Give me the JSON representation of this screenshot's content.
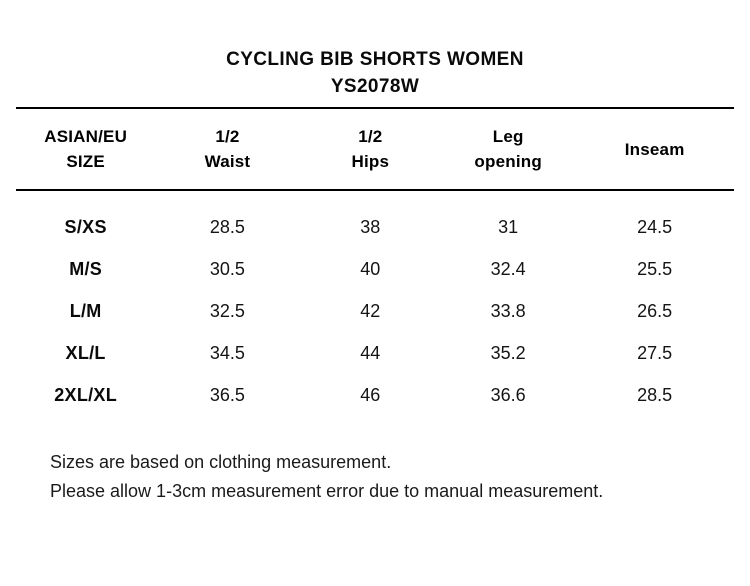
{
  "title": {
    "line1": "CYCLING BIB SHORTS WOMEN",
    "line2": "YS2078W"
  },
  "table": {
    "headers": [
      {
        "line1": "ASIAN/EU",
        "line2": "SIZE"
      },
      {
        "line1": "1/2",
        "line2": "Waist"
      },
      {
        "line1": "1/2",
        "line2": "Hips"
      },
      {
        "line1": "Leg",
        "line2": "opening"
      },
      {
        "line1": "Inseam",
        "line2": ""
      }
    ],
    "rows": [
      {
        "size": "S/XS",
        "half_waist": "28.5",
        "half_hips": "38",
        "leg_opening": "31",
        "inseam": "24.5"
      },
      {
        "size": "M/S",
        "half_waist": "30.5",
        "half_hips": "40",
        "leg_opening": "32.4",
        "inseam": "25.5"
      },
      {
        "size": "L/M",
        "half_waist": "32.5",
        "half_hips": "42",
        "leg_opening": "33.8",
        "inseam": "26.5"
      },
      {
        "size": "XL/L",
        "half_waist": "34.5",
        "half_hips": "44",
        "leg_opening": "35.2",
        "inseam": "27.5"
      },
      {
        "size": "2XL/XL",
        "half_waist": "36.5",
        "half_hips": "46",
        "leg_opening": "36.6",
        "inseam": "28.5"
      }
    ]
  },
  "notes": {
    "line1": "Sizes are based on clothing measurement.",
    "line2": "Please allow 1-3cm measurement error due to manual measurement."
  },
  "colors": {
    "background": "#ffffff",
    "text": "#000000",
    "rule": "#000000"
  },
  "chart_data": {
    "type": "table",
    "title": "CYCLING BIB SHORTS WOMEN",
    "subtitle": "YS2078W",
    "columns": [
      "ASIAN/EU SIZE",
      "1/2 Waist",
      "1/2 Hips",
      "Leg opening",
      "Inseam"
    ],
    "rows": [
      [
        "S/XS",
        28.5,
        38,
        31,
        24.5
      ],
      [
        "M/S",
        30.5,
        40,
        32.4,
        25.5
      ],
      [
        "L/M",
        32.5,
        42,
        33.8,
        26.5
      ],
      [
        "XL/L",
        34.5,
        44,
        35.2,
        27.5
      ],
      [
        "2XL/XL",
        36.5,
        46,
        36.6,
        28.5
      ]
    ],
    "notes": [
      "Sizes are based on clothing measurement.",
      "Please allow 1-3cm measurement error due to manual measurement."
    ]
  }
}
